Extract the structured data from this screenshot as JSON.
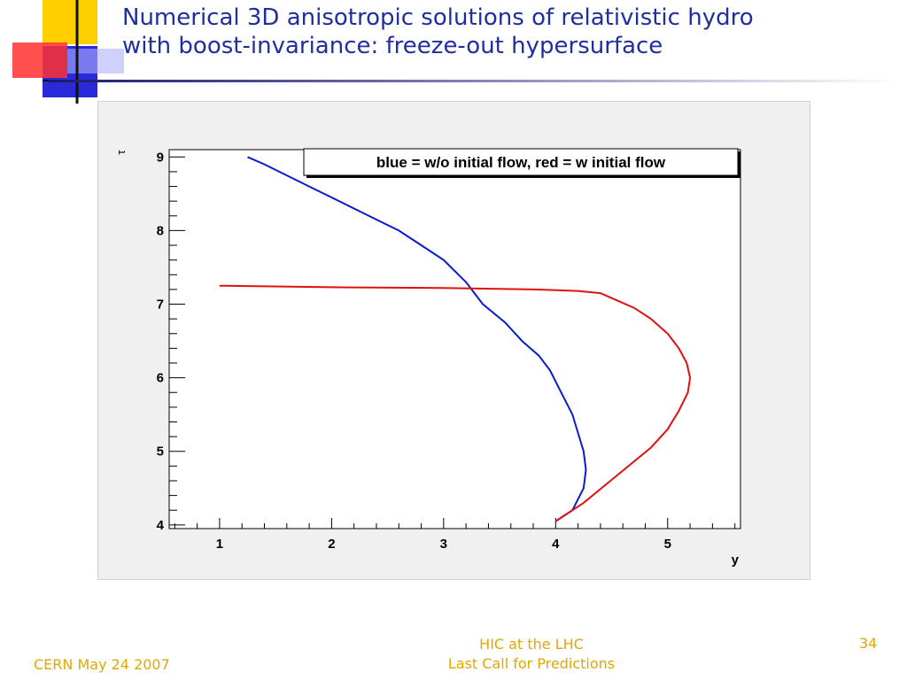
{
  "slide": {
    "title_lines": [
      "Numerical 3D anisotropic solutions of relativistic hydro",
      "with boost-invariance: freeze-out hypersurface"
    ],
    "footer_left": "CERN May 24 2007",
    "footer_center_lines": [
      "HIC at the LHC",
      "Last Call for Predictions"
    ],
    "page_number": "34",
    "colors": {
      "title": "#1f2ea0",
      "footer": "#e0a800",
      "deco_yellow": "#ffd000",
      "deco_red": "#ff2a2a",
      "deco_blue": "#2a2ad8"
    }
  },
  "chart_data": {
    "type": "line",
    "title": "",
    "xlabel": "y",
    "ylabel": "τ",
    "xlim": [
      0.55,
      5.65
    ],
    "ylim": [
      3.95,
      9.1
    ],
    "x_ticks": [
      1,
      2,
      3,
      4,
      5
    ],
    "y_ticks": [
      4,
      5,
      6,
      7,
      8,
      9
    ],
    "legend_text": "blue = w/o initial flow, red = w initial flow",
    "legend_position": "top-right",
    "grid": false,
    "series": [
      {
        "color": "#0a1ad0",
        "points": [
          [
            1.25,
            9.0
          ],
          [
            1.4,
            8.9
          ],
          [
            1.6,
            8.75
          ],
          [
            1.8,
            8.6
          ],
          [
            2.0,
            8.45
          ],
          [
            2.2,
            8.3
          ],
          [
            2.4,
            8.15
          ],
          [
            2.6,
            8.0
          ],
          [
            2.8,
            7.8
          ],
          [
            3.0,
            7.6
          ],
          [
            3.2,
            7.3
          ],
          [
            3.35,
            7.0
          ],
          [
            3.55,
            6.75
          ],
          [
            3.7,
            6.5
          ],
          [
            3.85,
            6.3
          ],
          [
            3.95,
            6.1
          ],
          [
            4.05,
            5.8
          ],
          [
            4.15,
            5.5
          ],
          [
            4.2,
            5.25
          ],
          [
            4.25,
            5.0
          ],
          [
            4.27,
            4.75
          ],
          [
            4.25,
            4.5
          ],
          [
            4.15,
            4.2
          ],
          [
            4.0,
            4.05
          ]
        ]
      },
      {
        "color": "#e01010",
        "points": [
          [
            1.0,
            7.25
          ],
          [
            2.0,
            7.23
          ],
          [
            3.0,
            7.22
          ],
          [
            3.8,
            7.2
          ],
          [
            4.2,
            7.18
          ],
          [
            4.4,
            7.15
          ],
          [
            4.55,
            7.05
          ],
          [
            4.7,
            6.95
          ],
          [
            4.85,
            6.8
          ],
          [
            5.0,
            6.6
          ],
          [
            5.1,
            6.4
          ],
          [
            5.17,
            6.2
          ],
          [
            5.2,
            6.0
          ],
          [
            5.18,
            5.8
          ],
          [
            5.1,
            5.55
          ],
          [
            5.0,
            5.3
          ],
          [
            4.85,
            5.05
          ],
          [
            4.65,
            4.8
          ],
          [
            4.45,
            4.55
          ],
          [
            4.25,
            4.3
          ],
          [
            4.1,
            4.15
          ],
          [
            4.0,
            4.05
          ]
        ]
      }
    ]
  }
}
